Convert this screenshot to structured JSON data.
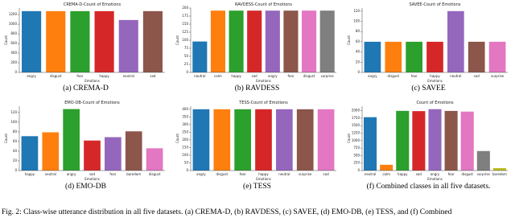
{
  "caption": "Fig. 2: Class-wise utterance distribution in all five datasets. (a) CREMA-D, (b) RAVDESS, (c) SAVEE, (d) EMO-DB, (e) TESS, and (f) Combined",
  "chart_data": [
    {
      "type": "bar",
      "title": "CREMA-D-Count of Emotions",
      "caption": "(a) CREMA-D",
      "xlabel": "Emotions",
      "ylabel": "Count",
      "categories": [
        "angry",
        "disgust",
        "fear",
        "happy",
        "neutral",
        "sad"
      ],
      "values": [
        1271,
        1271,
        1271,
        1271,
        1087,
        1271
      ],
      "colors": [
        "#1f77b4",
        "#ff7f0e",
        "#2ca02c",
        "#d62728",
        "#9467bd",
        "#8c564b"
      ],
      "ylim": [
        0,
        1335
      ],
      "yticks": [
        0,
        200,
        400,
        600,
        800,
        1000,
        1200
      ]
    },
    {
      "type": "bar",
      "title": "RAVDESS-Count of Emotions",
      "caption": "(b) RAVDESS",
      "xlabel": "Emotions",
      "ylabel": "Count",
      "categories": [
        "neutral",
        "calm",
        "happy",
        "sad",
        "angry",
        "fear",
        "disgust",
        "surprise"
      ],
      "values": [
        96,
        192,
        192,
        192,
        192,
        192,
        192,
        192
      ],
      "colors": [
        "#1f77b4",
        "#ff7f0e",
        "#2ca02c",
        "#d62728",
        "#9467bd",
        "#8c564b",
        "#e377c2",
        "#7f7f7f"
      ],
      "ylim": [
        0,
        200
      ],
      "yticks": [
        0,
        25,
        50,
        75,
        100,
        125,
        150,
        175,
        200
      ]
    },
    {
      "type": "bar",
      "title": "SAVEE-Count of Emotions",
      "caption": "(c) SAVEE",
      "xlabel": "Emotions",
      "ylabel": "Count",
      "categories": [
        "angry",
        "disgust",
        "fear",
        "happy",
        "neutral",
        "sad",
        "surprise"
      ],
      "values": [
        60,
        60,
        60,
        60,
        120,
        60,
        60
      ],
      "colors": [
        "#1f77b4",
        "#ff7f0e",
        "#2ca02c",
        "#d62728",
        "#9467bd",
        "#8c564b",
        "#e377c2"
      ],
      "ylim": [
        0,
        126
      ],
      "yticks": [
        0,
        20,
        40,
        60,
        80,
        100,
        120
      ]
    },
    {
      "type": "bar",
      "title": "EMO-DB-Count of Emotions",
      "caption": "(d) EMO-DB",
      "xlabel": "Emotions",
      "ylabel": "Count",
      "categories": [
        "happy",
        "neutral",
        "angry",
        "sad",
        "fear",
        "boredom",
        "disgust"
      ],
      "values": [
        71,
        79,
        127,
        62,
        69,
        81,
        46
      ],
      "colors": [
        "#1f77b4",
        "#ff7f0e",
        "#2ca02c",
        "#d62728",
        "#9467bd",
        "#8c564b",
        "#e377c2"
      ],
      "ylim": [
        0,
        133
      ],
      "yticks": [
        0,
        20,
        40,
        60,
        80,
        100,
        120
      ]
    },
    {
      "type": "bar",
      "title": "TESS-Count of Emotions",
      "caption": "(e) TESS",
      "xlabel": "Emotions",
      "ylabel": "Count",
      "categories": [
        "angry",
        "disgust",
        "fear",
        "happy",
        "neutral",
        "surprise",
        "sad"
      ],
      "values": [
        400,
        400,
        400,
        400,
        400,
        400,
        400
      ],
      "colors": [
        "#1f77b4",
        "#ff7f0e",
        "#2ca02c",
        "#d62728",
        "#9467bd",
        "#8c564b",
        "#e377c2"
      ],
      "ylim": [
        0,
        420
      ],
      "yticks": [
        0,
        50,
        100,
        150,
        200,
        250,
        300,
        350,
        400
      ]
    },
    {
      "type": "bar",
      "title": "Count of Emotions",
      "caption": "(f) Combined classes in all five datasets.",
      "xlabel": "Emotions",
      "ylabel": "Count",
      "categories": [
        "neutral",
        "calm",
        "happy",
        "sad",
        "angry",
        "fear",
        "disgust",
        "surprise",
        "boredom"
      ],
      "values": [
        1782,
        192,
        1994,
        1985,
        2050,
        1992,
        1969,
        652,
        81
      ],
      "colors": [
        "#1f77b4",
        "#ff7f0e",
        "#2ca02c",
        "#d62728",
        "#9467bd",
        "#8c564b",
        "#e377c2",
        "#7f7f7f",
        "#bcbd22"
      ],
      "ylim": [
        0,
        2150
      ],
      "yticks": [
        0,
        250,
        500,
        750,
        1000,
        1250,
        1500,
        1750,
        2000
      ]
    }
  ]
}
